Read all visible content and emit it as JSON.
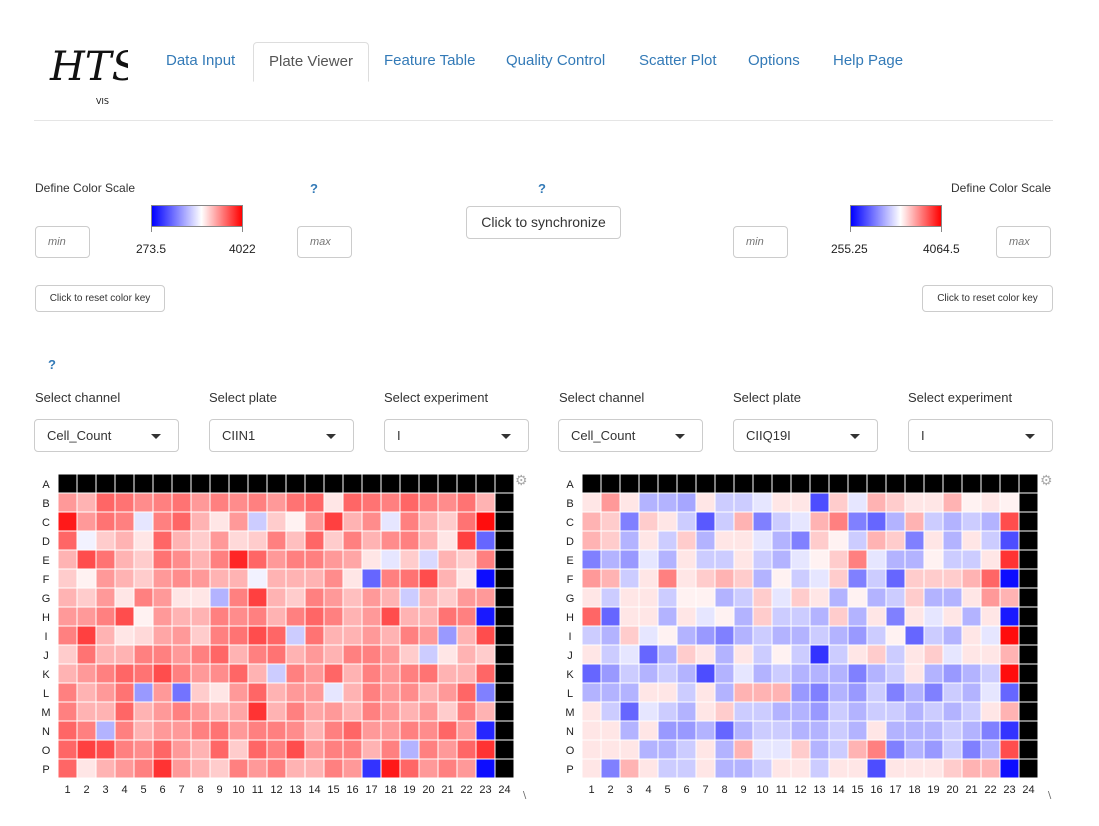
{
  "nav": {
    "logo_text": "HTS",
    "logo_sub": "VIS",
    "tabs": [
      {
        "label": "Data Input"
      },
      {
        "label": "Plate Viewer",
        "active": true
      },
      {
        "label": "Feature Table"
      },
      {
        "label": "Quality Control"
      },
      {
        "label": "Scatter Plot"
      },
      {
        "label": "Options"
      },
      {
        "label": "Help Page"
      }
    ]
  },
  "color_scale": {
    "left": {
      "label": "Define Color Scale",
      "help": "?",
      "min_placeholder": "min",
      "max_placeholder": "max",
      "low": "273.5",
      "high": "4022",
      "reset_label": "Click to reset color key"
    },
    "right": {
      "label": "Define Color Scale",
      "min_placeholder": "min",
      "max_placeholder": "max",
      "low": "255.25",
      "high": "4064.5",
      "reset_label": "Click to reset color key"
    },
    "sync_help": "?",
    "sync_label": "Click to synchronize",
    "gradient_colors": [
      "#0000ff",
      "#ffffff",
      "#ff0000"
    ]
  },
  "selectors_help": "?",
  "left_controls": {
    "channel_label": "Select channel",
    "channel_value": "Cell_Count",
    "plate_label": "Select plate",
    "plate_value": "CIIN1",
    "experiment_label": "Select experiment",
    "experiment_value": "I"
  },
  "right_controls": {
    "channel_label": "Select channel",
    "channel_value": "Cell_Count",
    "plate_label": "Select plate",
    "plate_value": "CIIQ19I",
    "experiment_label": "Select experiment",
    "experiment_value": "I"
  },
  "plates": {
    "rows": [
      "A",
      "B",
      "C",
      "D",
      "E",
      "F",
      "G",
      "H",
      "I",
      "J",
      "K",
      "L",
      "M",
      "N",
      "O",
      "P"
    ],
    "cols": [
      "1",
      "2",
      "3",
      "4",
      "5",
      "6",
      "7",
      "8",
      "9",
      "10",
      "11",
      "12",
      "13",
      "14",
      "15",
      "16",
      "17",
      "18",
      "19",
      "20",
      "21",
      "22",
      "23",
      "24"
    ],
    "empty_color": "#000000",
    "left": [
      [
        null,
        null,
        null,
        null,
        null,
        null,
        null,
        null,
        null,
        null,
        null,
        null,
        null,
        null,
        null,
        null,
        null,
        null,
        null,
        null,
        null,
        null,
        null,
        null
      ],
      [
        0.4,
        0.3,
        0.6,
        0.55,
        0.45,
        0.5,
        0.55,
        0.4,
        0.5,
        0.45,
        0.5,
        0.4,
        0.55,
        0.6,
        0.1,
        0.6,
        0.55,
        0.5,
        0.6,
        0.5,
        0.45,
        0.55,
        0.3,
        null
      ],
      [
        0.9,
        0.4,
        0.55,
        0.5,
        -0.1,
        0.5,
        0.6,
        0.3,
        0.1,
        0.4,
        -0.2,
        0.2,
        0.05,
        0.4,
        0.75,
        0.3,
        0.45,
        -0.1,
        0.5,
        0.3,
        0.2,
        0.55,
        0.95,
        null
      ],
      [
        0.6,
        -0.05,
        0.2,
        0.3,
        0.1,
        0.6,
        0.3,
        0.2,
        0.4,
        0.15,
        0.2,
        0.5,
        0.25,
        0.6,
        0.2,
        0.5,
        0.3,
        0.45,
        0.5,
        0.3,
        0.1,
        0.75,
        -0.6,
        null
      ],
      [
        0.3,
        0.7,
        0.55,
        0.3,
        0.2,
        0.55,
        0.45,
        0.3,
        0.5,
        0.85,
        0.6,
        0.4,
        0.5,
        0.5,
        0.4,
        0.35,
        0.1,
        -0.1,
        0.2,
        -0.15,
        0.3,
        0.2,
        0.5,
        null
      ],
      [
        0.2,
        0.05,
        0.4,
        0.3,
        0.2,
        0.4,
        0.45,
        0.4,
        0.3,
        0.3,
        -0.05,
        0.3,
        0.3,
        0.3,
        0.45,
        0.1,
        -0.6,
        0.5,
        0.55,
        0.7,
        0.3,
        0.1,
        -0.95,
        null
      ],
      [
        0.3,
        0.2,
        0.4,
        0.1,
        0.5,
        0.4,
        0.1,
        0.1,
        -0.3,
        0.5,
        0.75,
        0.3,
        0.2,
        0.5,
        0.4,
        0.25,
        0.4,
        0.3,
        -0.2,
        0.3,
        0.2,
        0.4,
        0.4,
        null
      ],
      [
        0.4,
        0.4,
        0.5,
        0.7,
        0.05,
        0.4,
        0.3,
        0.3,
        0.5,
        0.45,
        0.5,
        0.3,
        0.5,
        0.6,
        0.5,
        0.3,
        0.4,
        0.7,
        0.3,
        0.3,
        0.55,
        0.5,
        -0.9,
        null
      ],
      [
        0.5,
        0.75,
        0.3,
        0.1,
        0.15,
        0.35,
        0.4,
        0.2,
        0.5,
        0.55,
        0.7,
        0.6,
        -0.2,
        0.55,
        0.3,
        0.3,
        0.4,
        0.3,
        0.5,
        0.4,
        -0.4,
        0.3,
        0.7,
        null
      ],
      [
        0.2,
        0.55,
        0.3,
        0.3,
        0.5,
        0.5,
        0.4,
        0.5,
        0.6,
        0.3,
        0.5,
        0.55,
        0.3,
        0.4,
        0.3,
        0.5,
        0.5,
        0.4,
        0.2,
        -0.2,
        0.1,
        0.3,
        0.2,
        null
      ],
      [
        0.3,
        0.4,
        0.5,
        0.6,
        0.55,
        0.7,
        0.5,
        0.4,
        0.45,
        0.6,
        0.3,
        -0.2,
        0.5,
        0.4,
        0.6,
        0.3,
        0.5,
        0.4,
        0.5,
        0.55,
        0.3,
        0.3,
        0.6,
        null
      ],
      [
        0.5,
        0.3,
        0.4,
        0.55,
        -0.4,
        0.4,
        -0.55,
        0.2,
        0.1,
        0.4,
        0.6,
        0.3,
        0.4,
        0.4,
        -0.1,
        0.3,
        0.5,
        0.4,
        0.45,
        0.3,
        0.4,
        0.6,
        -0.5,
        null
      ],
      [
        0.5,
        0.3,
        0.3,
        0.6,
        0.3,
        0.4,
        0.5,
        0.4,
        0.3,
        0.35,
        0.8,
        0.3,
        0.5,
        0.35,
        0.4,
        0.3,
        0.5,
        0.4,
        0.3,
        0.4,
        0.2,
        0.5,
        0.3,
        null
      ],
      [
        0.6,
        0.5,
        -0.3,
        0.5,
        0.3,
        0.4,
        0.4,
        0.5,
        0.55,
        0.4,
        0.5,
        0.5,
        0.45,
        0.3,
        0.5,
        0.6,
        0.4,
        0.4,
        0.5,
        0.45,
        0.6,
        0.4,
        -0.85,
        null
      ],
      [
        0.6,
        0.75,
        0.7,
        0.5,
        0.45,
        0.6,
        0.4,
        0.3,
        0.6,
        0.2,
        0.6,
        0.5,
        0.7,
        0.4,
        0.5,
        0.5,
        0.3,
        0.5,
        -0.3,
        0.5,
        0.4,
        0.6,
        0.8,
        null
      ],
      [
        0.6,
        0.1,
        0.3,
        0.4,
        0.5,
        0.8,
        0.4,
        0.3,
        0.2,
        0.5,
        0.4,
        0.5,
        0.3,
        0.3,
        0.5,
        0.4,
        -0.8,
        0.9,
        0.6,
        0.4,
        0.5,
        0.4,
        -0.95,
        null
      ]
    ],
    "right": [
      [
        null,
        null,
        null,
        null,
        null,
        null,
        null,
        null,
        null,
        null,
        null,
        null,
        null,
        null,
        null,
        null,
        null,
        null,
        null,
        null,
        null,
        null,
        null,
        null
      ],
      [
        0.1,
        0.4,
        0.1,
        -0.3,
        -0.3,
        -0.35,
        0.1,
        -0.2,
        -0.2,
        -0.1,
        0.1,
        0.1,
        -0.7,
        0.2,
        -0.1,
        0.3,
        0.2,
        0.1,
        0.1,
        0.3,
        0.05,
        0.1,
        0.05,
        null
      ],
      [
        0.3,
        0.2,
        -0.5,
        0.2,
        0.1,
        -0.2,
        -0.65,
        -0.2,
        0.3,
        -0.5,
        -0.2,
        -0.1,
        0.3,
        0.5,
        -0.5,
        -0.6,
        -0.3,
        0.3,
        -0.2,
        -0.3,
        -0.2,
        -0.3,
        0.7,
        null
      ],
      [
        0.3,
        0.2,
        -0.3,
        0.1,
        -0.2,
        0.2,
        -0.3,
        0.1,
        0.1,
        -0.1,
        -0.3,
        -0.5,
        0.2,
        0.05,
        -0.2,
        0.3,
        0.2,
        -0.5,
        0.1,
        -0.3,
        0.1,
        -0.2,
        -0.7,
        null
      ],
      [
        -0.5,
        -0.3,
        -0.4,
        -0.1,
        -0.3,
        0.1,
        -0.2,
        -0.2,
        0.1,
        -0.2,
        -0.3,
        -0.1,
        0.05,
        0.2,
        0.5,
        -0.1,
        -0.3,
        -0.3,
        0.05,
        -0.2,
        -0.2,
        0.1,
        0.8,
        null
      ],
      [
        0.4,
        0.3,
        -0.2,
        0.1,
        0.5,
        0.1,
        0.2,
        0.3,
        0.2,
        -0.3,
        0.05,
        -0.2,
        -0.1,
        0.2,
        -0.5,
        -0.2,
        -0.6,
        0.2,
        0.2,
        0.2,
        0.3,
        0.6,
        -0.95,
        null
      ],
      [
        0.1,
        -0.2,
        0.1,
        0.1,
        -0.2,
        0.05,
        0.05,
        -0.3,
        -0.2,
        0.2,
        -0.1,
        0.2,
        0.1,
        -0.3,
        0.05,
        -0.3,
        -0.2,
        0.2,
        -0.3,
        -0.3,
        0.1,
        0.4,
        0.3,
        null
      ],
      [
        0.6,
        -0.6,
        0.1,
        0.1,
        -0.3,
        0.1,
        -0.1,
        0.05,
        -0.3,
        0.2,
        -0.2,
        -0.2,
        -0.3,
        0.2,
        -0.3,
        0.1,
        -0.5,
        0.1,
        -0.1,
        0.1,
        -0.3,
        0.1,
        -0.9,
        null
      ],
      [
        -0.2,
        -0.3,
        0.2,
        -0.1,
        0.05,
        -0.3,
        -0.4,
        -0.5,
        -0.3,
        -0.2,
        -0.3,
        -0.3,
        -0.2,
        -0.3,
        -0.4,
        -0.2,
        0.05,
        -0.6,
        -0.2,
        -0.3,
        0.1,
        -0.1,
        0.95,
        null
      ],
      [
        0.1,
        -0.2,
        -0.1,
        -0.6,
        -0.3,
        0.2,
        0.1,
        -0.3,
        0.1,
        -0.2,
        0.05,
        -0.2,
        -0.8,
        -0.2,
        0.1,
        0.2,
        -0.2,
        0.1,
        0.2,
        -0.1,
        0.1,
        0.1,
        0.3,
        null
      ],
      [
        -0.6,
        -0.4,
        -0.2,
        -0.3,
        -0.2,
        -0.3,
        -0.7,
        -0.3,
        -0.1,
        -0.3,
        -0.2,
        -0.3,
        -0.3,
        -0.3,
        -0.5,
        -0.3,
        -0.2,
        0.1,
        -0.3,
        -0.4,
        -0.3,
        -0.2,
        0.95,
        null
      ],
      [
        -0.3,
        -0.3,
        -0.3,
        0.1,
        0.1,
        -0.2,
        0.1,
        -0.3,
        0.3,
        0.3,
        0.3,
        -0.4,
        -0.5,
        -0.3,
        -0.4,
        -0.2,
        -0.5,
        -0.3,
        -0.5,
        -0.2,
        -0.3,
        -0.1,
        -0.6,
        null
      ],
      [
        0.1,
        -0.2,
        -0.6,
        -0.1,
        -0.2,
        -0.3,
        0.1,
        0.2,
        -0.2,
        -0.2,
        -0.3,
        -0.3,
        -0.4,
        -0.2,
        -0.3,
        -0.2,
        -0.2,
        -0.3,
        -0.2,
        -0.3,
        -0.2,
        0.1,
        0.3,
        null
      ],
      [
        0.1,
        0.1,
        -0.3,
        0.1,
        -0.4,
        -0.4,
        -0.3,
        -0.6,
        -0.3,
        -0.2,
        -0.2,
        -0.3,
        -0.3,
        -0.2,
        -0.3,
        0.1,
        -0.3,
        -0.3,
        -0.3,
        -0.2,
        -0.3,
        -0.5,
        -0.8,
        null
      ],
      [
        0.1,
        0.1,
        0.1,
        -0.3,
        -0.3,
        -0.2,
        0.1,
        -0.3,
        0.3,
        -0.1,
        -0.1,
        0.2,
        -0.3,
        -0.2,
        0.3,
        0.5,
        -0.5,
        -0.3,
        -0.4,
        -0.2,
        -0.5,
        -0.3,
        0.7,
        null
      ],
      [
        0.1,
        -0.5,
        0.3,
        0.1,
        -0.2,
        -0.2,
        0.1,
        -0.3,
        -0.3,
        -0.2,
        0.1,
        0.1,
        -0.2,
        0.1,
        0.1,
        -0.7,
        0.1,
        0.1,
        0.1,
        0.2,
        0.3,
        0.3,
        -0.95,
        null
      ]
    ]
  }
}
